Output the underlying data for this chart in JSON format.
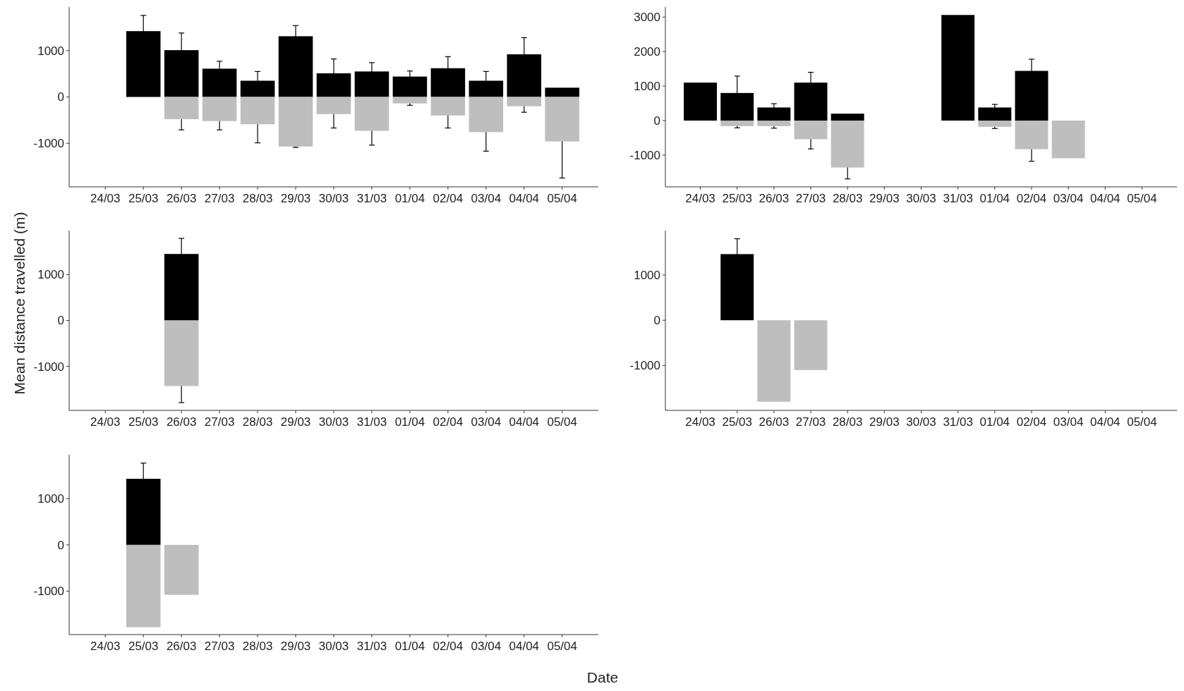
{
  "chart_data": [
    {
      "type": "bar",
      "stacked": true,
      "categories": [
        "24/03",
        "25/03",
        "26/03",
        "27/03",
        "28/03",
        "29/03",
        "30/03",
        "31/03",
        "01/04",
        "02/04",
        "03/04",
        "04/04",
        "05/04"
      ],
      "ylim": [
        -1940,
        1940
      ],
      "yticks": [
        -1000,
        0,
        1000
      ],
      "series": [
        {
          "color": "#000000",
          "values": [
            null,
            1420,
            1010,
            610,
            350,
            1310,
            510,
            550,
            440,
            620,
            350,
            920,
            200
          ],
          "errors": [
            null,
            340,
            370,
            160,
            200,
            230,
            310,
            190,
            120,
            250,
            200,
            360,
            null
          ]
        },
        {
          "color": "#bebebe",
          "values": [
            null,
            null,
            -480,
            -520,
            -590,
            -1070,
            -370,
            -730,
            -140,
            -400,
            -760,
            -200,
            -960
          ],
          "errors": [
            null,
            null,
            230,
            190,
            400,
            20,
            300,
            310,
            40,
            270,
            410,
            130,
            790
          ]
        }
      ]
    },
    {
      "type": "bar",
      "stacked": true,
      "categories": [
        "24/03",
        "25/03",
        "26/03",
        "27/03",
        "28/03",
        "29/03",
        "30/03",
        "31/03",
        "01/04",
        "02/04",
        "03/04",
        "04/04",
        "05/04"
      ],
      "ylim": [
        -1920,
        3290
      ],
      "yticks": [
        -1000,
        0,
        1000,
        2000,
        3000
      ],
      "series": [
        {
          "color": "#000000",
          "values": [
            1100,
            800,
            380,
            1100,
            200,
            null,
            null,
            3060,
            380,
            1440,
            null,
            null,
            null
          ],
          "errors": [
            null,
            490,
            110,
            300,
            null,
            null,
            null,
            null,
            90,
            340,
            null,
            null,
            null
          ]
        },
        {
          "color": "#bebebe",
          "values": [
            null,
            -160,
            -160,
            -540,
            -1360,
            null,
            null,
            null,
            -180,
            -830,
            -1090,
            null,
            null
          ],
          "errors": [
            null,
            50,
            60,
            280,
            330,
            null,
            null,
            null,
            50,
            350,
            null,
            null,
            null
          ]
        }
      ]
    },
    {
      "type": "bar",
      "stacked": true,
      "ylabel": "Mean distance travelled (m)",
      "categories": [
        "24/03",
        "25/03",
        "26/03",
        "27/03",
        "28/03",
        "29/03",
        "30/03",
        "31/03",
        "01/04",
        "02/04",
        "03/04",
        "04/04",
        "05/04"
      ],
      "ylim": [
        -1960,
        1960
      ],
      "yticks": [
        -1000,
        0,
        1000
      ],
      "series": [
        {
          "color": "#000000",
          "values": [
            null,
            null,
            1450,
            null,
            null,
            null,
            null,
            null,
            null,
            null,
            null,
            null,
            null
          ],
          "errors": [
            null,
            null,
            340,
            null,
            null,
            null,
            null,
            null,
            null,
            null,
            null,
            null,
            null
          ]
        },
        {
          "color": "#bebebe",
          "values": [
            null,
            null,
            -1430,
            null,
            null,
            null,
            null,
            null,
            null,
            null,
            null,
            null,
            null
          ],
          "errors": [
            null,
            null,
            360,
            null,
            null,
            null,
            null,
            null,
            null,
            null,
            null,
            null,
            null
          ]
        }
      ]
    },
    {
      "type": "bar",
      "stacked": true,
      "categories": [
        "24/03",
        "25/03",
        "26/03",
        "27/03",
        "28/03",
        "29/03",
        "30/03",
        "31/03",
        "01/04",
        "02/04",
        "03/04",
        "04/04",
        "05/04"
      ],
      "ylim": [
        -1990,
        1980
      ],
      "yticks": [
        -1000,
        0,
        1000
      ],
      "series": [
        {
          "color": "#000000",
          "values": [
            null,
            1460,
            null,
            null,
            null,
            null,
            null,
            null,
            null,
            null,
            null,
            null,
            null
          ],
          "errors": [
            null,
            340,
            null,
            null,
            null,
            null,
            null,
            null,
            null,
            null,
            null,
            null,
            null
          ]
        },
        {
          "color": "#bebebe",
          "values": [
            null,
            null,
            -1800,
            -1100,
            null,
            null,
            null,
            null,
            null,
            null,
            null,
            null,
            null
          ]
        }
      ]
    },
    {
      "type": "bar",
      "stacked": true,
      "xlabel": "Date",
      "categories": [
        "24/03",
        "25/03",
        "26/03",
        "27/03",
        "28/03",
        "29/03",
        "30/03",
        "31/03",
        "01/04",
        "02/04",
        "03/04",
        "04/04",
        "05/04"
      ],
      "ylim": [
        -1940,
        1950
      ],
      "yticks": [
        -1000,
        0,
        1000
      ],
      "series": [
        {
          "color": "#000000",
          "values": [
            null,
            1430,
            null,
            null,
            null,
            null,
            null,
            null,
            null,
            null,
            null,
            null,
            null
          ],
          "errors": [
            null,
            340,
            null,
            null,
            null,
            null,
            null,
            null,
            null,
            null,
            null,
            null,
            null
          ]
        },
        {
          "color": "#bebebe",
          "values": [
            null,
            -1780,
            -1080,
            null,
            null,
            null,
            null,
            null,
            null,
            null,
            null,
            null,
            null
          ]
        }
      ]
    }
  ]
}
